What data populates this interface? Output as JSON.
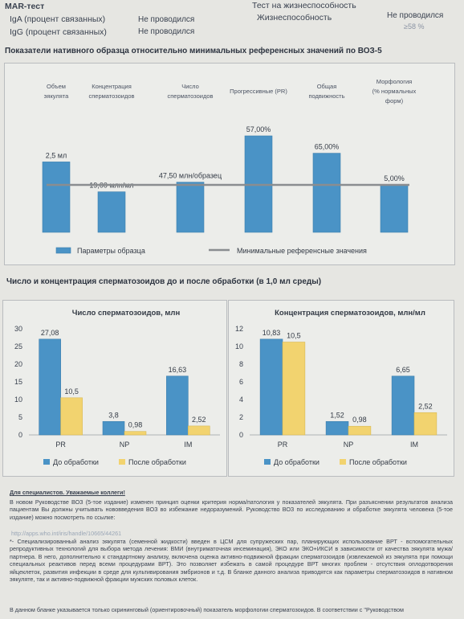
{
  "mar": {
    "title": "MAR-тест",
    "rows": [
      {
        "label": "IgA (процент связанных)",
        "value": "Не проводился"
      },
      {
        "label": "IgG (процент связанных)",
        "value": "Не проводился"
      }
    ]
  },
  "viability": {
    "title": "Тест на жизнеспособность",
    "label": "Жизнеспособность",
    "value": "Не проводился",
    "ref": "≥58 %"
  },
  "section1_title": "Показатели нативного образца относительно минимальных референсных значений по ВОЗ-5",
  "section2_title": "Число и концентрация сперматозоидов до и после обработки (в 1,0 мл среды)",
  "colors": {
    "blue": "#4a93c6",
    "yellow": "#f2d36f",
    "line": "#8a8d90"
  },
  "chart_data": [
    {
      "type": "bar",
      "title": "",
      "categories": [
        "Объем эякулята",
        "Концентрация сперматозоидов",
        "Число сперматозоидов",
        "Прогрессивные (PR)",
        "Общая подвижность",
        "Морфология (% нормальных форм)"
      ],
      "category_lines": [
        [
          "Объем",
          "эякулята"
        ],
        [
          "Концентрация",
          "сперматозоидов"
        ],
        [
          "Число",
          "сперматозоидов"
        ],
        [
          "Прогрессивные (PR)"
        ],
        [
          "Общая",
          "подвижность"
        ],
        [
          "Морфология",
          "(% нормальных",
          "форм)"
        ]
      ],
      "series": [
        {
          "name": "Параметры образца",
          "values": [
            2.5,
            19.0,
            47.5,
            57.0,
            65.0,
            5.0
          ]
        }
      ],
      "data_labels": [
        "2,5 мл",
        "19,00 млн/мл",
        "47,50 млн/образец",
        "57,00%",
        "65,00%",
        "5,00%"
      ],
      "reference": {
        "name": "Минимальные референсные значения"
      },
      "legend": "bottom"
    },
    {
      "type": "bar",
      "title": "Число сперматозоидов, млн",
      "categories": [
        "PR",
        "NP",
        "IM"
      ],
      "series": [
        {
          "name": "До обработки",
          "values": [
            27.08,
            3.8,
            16.63
          ],
          "labels": [
            "27,08",
            "3,8",
            "16,63"
          ]
        },
        {
          "name": "После обработки",
          "values": [
            10.5,
            0.98,
            2.52
          ],
          "labels": [
            "10,5",
            "0,98",
            "2,52"
          ]
        }
      ],
      "ylim": [
        0,
        30
      ],
      "yticks": [
        0,
        5,
        10,
        15,
        20,
        25,
        30
      ],
      "legend": "bottom"
    },
    {
      "type": "bar",
      "title": "Концентрация сперматозоидов, млн/мл",
      "categories": [
        "PR",
        "NP",
        "IM"
      ],
      "series": [
        {
          "name": "До обработки",
          "values": [
            10.83,
            1.52,
            6.65
          ],
          "labels": [
            "10,83",
            "1,52",
            "6,65"
          ]
        },
        {
          "name": "После обработки",
          "values": [
            10.5,
            0.98,
            2.52
          ],
          "labels": [
            "10,5",
            "0,98",
            "2,52"
          ]
        }
      ],
      "ylim": [
        0,
        12
      ],
      "yticks": [
        0,
        2,
        4,
        6,
        8,
        10,
        12
      ],
      "legend": "bottom"
    }
  ],
  "notes": {
    "heading": "Для специалистов. Уважаемые коллеги!",
    "p1": "В новом Руководстве ВОЗ (5-тое издание) изменен принцип оценки критерия норма/патология у показателей эякулята. При разъяснении результатов анализа пациентам Вы должны учитывать нововведения ВОЗ во избежание недоразумений. Руководство ВОЗ по исследованию и обработке эякулята человека (5-тое издание) можно посмотреть по ссылке:",
    "link": "http://apps.who.int/iris/handle/10665/44261",
    "p2": "*- Специализированный анализ эякулята (семенной жидкости) введен в ЦСМ для супружеских пар, планирующих использование ВРТ - вспомогательных репродуктивных технологий для выбора метода лечения: ВМИ (внутриматочная инсеминация), ЭКО или ЭКО+ИКСИ в зависимости от качества эякулята мужа/партнера. В него, дополнительно к стандартному анализу, включена оценка активно-подвижной фракции сперматозоидов (извлекаемой из эякулята при помощи специальных реактивов перед всеми процедурами ВРТ). Это позволяет избежать в самой процедуре ВРТ многих проблем - отсутствия оплодотворения яйцеклеток, развития инфекции в среде для культивирования эмбрионов и т.д. В бланке данного анализа приводятся как параметры сперматозоидов в нативном эякуляте, так и активно-подвижной фракции мужских половых клеток.",
    "p3": "В данном бланке указывается только скрининговый (ориентировочный) показатель морфологии сперматозоидов. В соответствии с \"Руководством"
  }
}
